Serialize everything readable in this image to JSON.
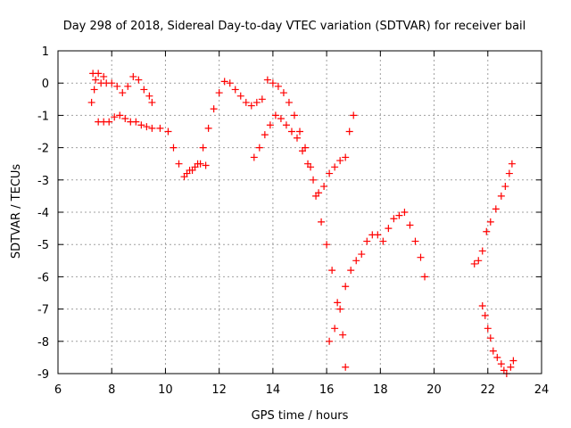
{
  "chart_data": {
    "type": "scatter",
    "title": "Day 298 of 2018, Sidereal Day-to-day VTEC variation (SDTVAR) for receiver bail",
    "xlabel": "GPS time / hours",
    "ylabel": "SDTVAR / TECUs",
    "xlim": [
      6,
      24
    ],
    "ylim": [
      -9,
      1
    ],
    "xticks": [
      "6",
      "8",
      "10",
      "12",
      "14",
      "16",
      "18",
      "20",
      "22",
      "24"
    ],
    "yticks": [
      "1",
      "0",
      "-1",
      "-2",
      "-3",
      "-4",
      "-5",
      "-6",
      "-7",
      "-8",
      "-9"
    ],
    "grid": true,
    "marker": "+",
    "colors": {
      "series": "#ff0000"
    },
    "series": [
      {
        "x": [
          7.25,
          7.3,
          7.35,
          7.4,
          7.5,
          7.6,
          7.7,
          7.8,
          8.0,
          8.2,
          8.4,
          8.6,
          8.8,
          9.0,
          9.2,
          9.4,
          9.5
        ],
        "y": [
          -0.6,
          0.3,
          -0.2,
          0.1,
          0.3,
          0.0,
          0.2,
          0.0,
          0.0,
          -0.1,
          -0.3,
          -0.1,
          0.2,
          0.1,
          -0.2,
          -0.4,
          -0.6
        ]
      },
      {
        "x": [
          7.5,
          7.7,
          7.9,
          8.1,
          8.3,
          8.5,
          8.7,
          8.9,
          9.1,
          9.3,
          9.5,
          9.8,
          10.1,
          10.3,
          10.5,
          10.7,
          10.9,
          11.1,
          11.3,
          11.5
        ],
        "y": [
          -1.2,
          -1.2,
          -1.2,
          -1.05,
          -1.0,
          -1.1,
          -1.2,
          -1.2,
          -1.3,
          -1.35,
          -1.4,
          -1.4,
          -1.5,
          -2.0,
          -2.5,
          -2.9,
          -2.7,
          -2.6,
          -2.5,
          -2.55
        ]
      },
      {
        "x": [
          10.8,
          11.0,
          11.2,
          11.4,
          11.6,
          11.8,
          12.0,
          12.2,
          12.4,
          12.6,
          12.8,
          13.0,
          13.2,
          13.4,
          13.6,
          13.8,
          14.0,
          14.2,
          14.4,
          14.6,
          14.8,
          15.0,
          15.2,
          15.4,
          15.6,
          15.8,
          16.0,
          16.2,
          16.4,
          16.6,
          16.7
        ],
        "y": [
          -2.8,
          -2.7,
          -2.5,
          -2.0,
          -1.4,
          -0.8,
          -0.3,
          0.05,
          0.0,
          -0.2,
          -0.4,
          -0.6,
          -0.7,
          -0.6,
          -0.5,
          0.1,
          0.0,
          -0.1,
          -0.3,
          -0.6,
          -1.0,
          -1.5,
          -2.0,
          -2.6,
          -3.5,
          -4.3,
          -5.0,
          -5.8,
          -6.8,
          -7.8,
          -8.8
        ]
      },
      {
        "x": [
          13.3,
          13.5,
          13.7,
          13.9,
          14.1,
          14.3,
          14.5,
          14.7,
          14.9,
          15.1,
          15.3,
          15.5,
          15.7,
          15.9,
          16.1,
          16.3,
          16.5,
          16.7,
          16.85,
          17.0
        ],
        "y": [
          -2.3,
          -2.0,
          -1.6,
          -1.3,
          -1.0,
          -1.1,
          -1.3,
          -1.5,
          -1.7,
          -2.1,
          -2.5,
          -3.0,
          -3.4,
          -3.2,
          -2.8,
          -2.6,
          -2.4,
          -2.3,
          -1.5,
          -1.0
        ]
      },
      {
        "x": [
          16.1,
          16.3,
          16.5,
          16.7,
          16.9,
          17.1,
          17.3,
          17.5,
          17.7,
          17.9,
          18.1,
          18.3,
          18.5,
          18.7,
          18.9,
          19.1,
          19.3,
          19.5,
          19.65
        ],
        "y": [
          -8.0,
          -7.6,
          -7.0,
          -6.3,
          -5.8,
          -5.5,
          -5.3,
          -4.9,
          -4.7,
          -4.7,
          -4.9,
          -4.5,
          -4.2,
          -4.1,
          -4.0,
          -4.4,
          -4.9,
          -5.4,
          -6.0
        ]
      },
      {
        "x": [
          21.5,
          21.65,
          21.8,
          21.95,
          22.1,
          22.3,
          22.5,
          22.65,
          22.8,
          22.9
        ],
        "y": [
          -5.6,
          -5.5,
          -5.2,
          -4.6,
          -4.3,
          -3.9,
          -3.5,
          -3.2,
          -2.8,
          -2.5
        ]
      },
      {
        "x": [
          21.8,
          21.9,
          22.0,
          22.1,
          22.2,
          22.35,
          22.5,
          22.6,
          22.7,
          22.85,
          22.95
        ],
        "y": [
          -6.9,
          -7.2,
          -7.6,
          -7.9,
          -8.3,
          -8.5,
          -8.7,
          -8.9,
          -9.0,
          -8.8,
          -8.6
        ]
      }
    ]
  }
}
